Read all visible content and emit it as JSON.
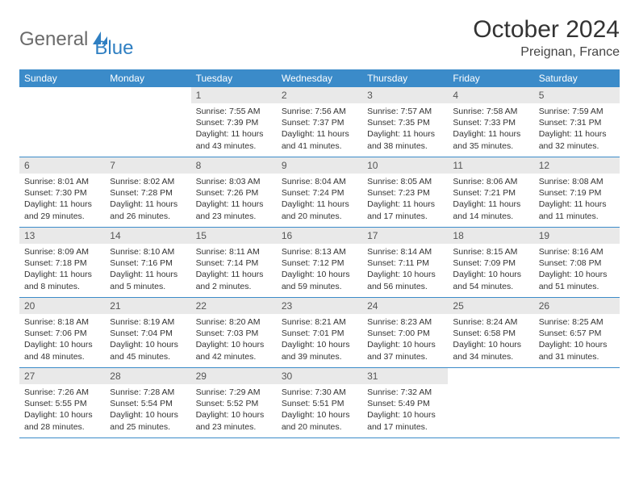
{
  "brand": {
    "part1": "General",
    "part2": "Blue"
  },
  "title": "October 2024",
  "location": "Preignan, France",
  "accent": "#3b8bc9",
  "dayHeaderBg": "#e9e9e9",
  "daynames": [
    "Sunday",
    "Monday",
    "Tuesday",
    "Wednesday",
    "Thursday",
    "Friday",
    "Saturday"
  ],
  "weeks": [
    [
      null,
      null,
      {
        "n": "1",
        "l": [
          "Sunrise: 7:55 AM",
          "Sunset: 7:39 PM",
          "Daylight: 11 hours and 43 minutes."
        ]
      },
      {
        "n": "2",
        "l": [
          "Sunrise: 7:56 AM",
          "Sunset: 7:37 PM",
          "Daylight: 11 hours and 41 minutes."
        ]
      },
      {
        "n": "3",
        "l": [
          "Sunrise: 7:57 AM",
          "Sunset: 7:35 PM",
          "Daylight: 11 hours and 38 minutes."
        ]
      },
      {
        "n": "4",
        "l": [
          "Sunrise: 7:58 AM",
          "Sunset: 7:33 PM",
          "Daylight: 11 hours and 35 minutes."
        ]
      },
      {
        "n": "5",
        "l": [
          "Sunrise: 7:59 AM",
          "Sunset: 7:31 PM",
          "Daylight: 11 hours and 32 minutes."
        ]
      }
    ],
    [
      {
        "n": "6",
        "l": [
          "Sunrise: 8:01 AM",
          "Sunset: 7:30 PM",
          "Daylight: 11 hours and 29 minutes."
        ]
      },
      {
        "n": "7",
        "l": [
          "Sunrise: 8:02 AM",
          "Sunset: 7:28 PM",
          "Daylight: 11 hours and 26 minutes."
        ]
      },
      {
        "n": "8",
        "l": [
          "Sunrise: 8:03 AM",
          "Sunset: 7:26 PM",
          "Daylight: 11 hours and 23 minutes."
        ]
      },
      {
        "n": "9",
        "l": [
          "Sunrise: 8:04 AM",
          "Sunset: 7:24 PM",
          "Daylight: 11 hours and 20 minutes."
        ]
      },
      {
        "n": "10",
        "l": [
          "Sunrise: 8:05 AM",
          "Sunset: 7:23 PM",
          "Daylight: 11 hours and 17 minutes."
        ]
      },
      {
        "n": "11",
        "l": [
          "Sunrise: 8:06 AM",
          "Sunset: 7:21 PM",
          "Daylight: 11 hours and 14 minutes."
        ]
      },
      {
        "n": "12",
        "l": [
          "Sunrise: 8:08 AM",
          "Sunset: 7:19 PM",
          "Daylight: 11 hours and 11 minutes."
        ]
      }
    ],
    [
      {
        "n": "13",
        "l": [
          "Sunrise: 8:09 AM",
          "Sunset: 7:18 PM",
          "Daylight: 11 hours and 8 minutes."
        ]
      },
      {
        "n": "14",
        "l": [
          "Sunrise: 8:10 AM",
          "Sunset: 7:16 PM",
          "Daylight: 11 hours and 5 minutes."
        ]
      },
      {
        "n": "15",
        "l": [
          "Sunrise: 8:11 AM",
          "Sunset: 7:14 PM",
          "Daylight: 11 hours and 2 minutes."
        ]
      },
      {
        "n": "16",
        "l": [
          "Sunrise: 8:13 AM",
          "Sunset: 7:12 PM",
          "Daylight: 10 hours and 59 minutes."
        ]
      },
      {
        "n": "17",
        "l": [
          "Sunrise: 8:14 AM",
          "Sunset: 7:11 PM",
          "Daylight: 10 hours and 56 minutes."
        ]
      },
      {
        "n": "18",
        "l": [
          "Sunrise: 8:15 AM",
          "Sunset: 7:09 PM",
          "Daylight: 10 hours and 54 minutes."
        ]
      },
      {
        "n": "19",
        "l": [
          "Sunrise: 8:16 AM",
          "Sunset: 7:08 PM",
          "Daylight: 10 hours and 51 minutes."
        ]
      }
    ],
    [
      {
        "n": "20",
        "l": [
          "Sunrise: 8:18 AM",
          "Sunset: 7:06 PM",
          "Daylight: 10 hours and 48 minutes."
        ]
      },
      {
        "n": "21",
        "l": [
          "Sunrise: 8:19 AM",
          "Sunset: 7:04 PM",
          "Daylight: 10 hours and 45 minutes."
        ]
      },
      {
        "n": "22",
        "l": [
          "Sunrise: 8:20 AM",
          "Sunset: 7:03 PM",
          "Daylight: 10 hours and 42 minutes."
        ]
      },
      {
        "n": "23",
        "l": [
          "Sunrise: 8:21 AM",
          "Sunset: 7:01 PM",
          "Daylight: 10 hours and 39 minutes."
        ]
      },
      {
        "n": "24",
        "l": [
          "Sunrise: 8:23 AM",
          "Sunset: 7:00 PM",
          "Daylight: 10 hours and 37 minutes."
        ]
      },
      {
        "n": "25",
        "l": [
          "Sunrise: 8:24 AM",
          "Sunset: 6:58 PM",
          "Daylight: 10 hours and 34 minutes."
        ]
      },
      {
        "n": "26",
        "l": [
          "Sunrise: 8:25 AM",
          "Sunset: 6:57 PM",
          "Daylight: 10 hours and 31 minutes."
        ]
      }
    ],
    [
      {
        "n": "27",
        "l": [
          "Sunrise: 7:26 AM",
          "Sunset: 5:55 PM",
          "Daylight: 10 hours and 28 minutes."
        ]
      },
      {
        "n": "28",
        "l": [
          "Sunrise: 7:28 AM",
          "Sunset: 5:54 PM",
          "Daylight: 10 hours and 25 minutes."
        ]
      },
      {
        "n": "29",
        "l": [
          "Sunrise: 7:29 AM",
          "Sunset: 5:52 PM",
          "Daylight: 10 hours and 23 minutes."
        ]
      },
      {
        "n": "30",
        "l": [
          "Sunrise: 7:30 AM",
          "Sunset: 5:51 PM",
          "Daylight: 10 hours and 20 minutes."
        ]
      },
      {
        "n": "31",
        "l": [
          "Sunrise: 7:32 AM",
          "Sunset: 5:49 PM",
          "Daylight: 10 hours and 17 minutes."
        ]
      },
      null,
      null
    ]
  ]
}
